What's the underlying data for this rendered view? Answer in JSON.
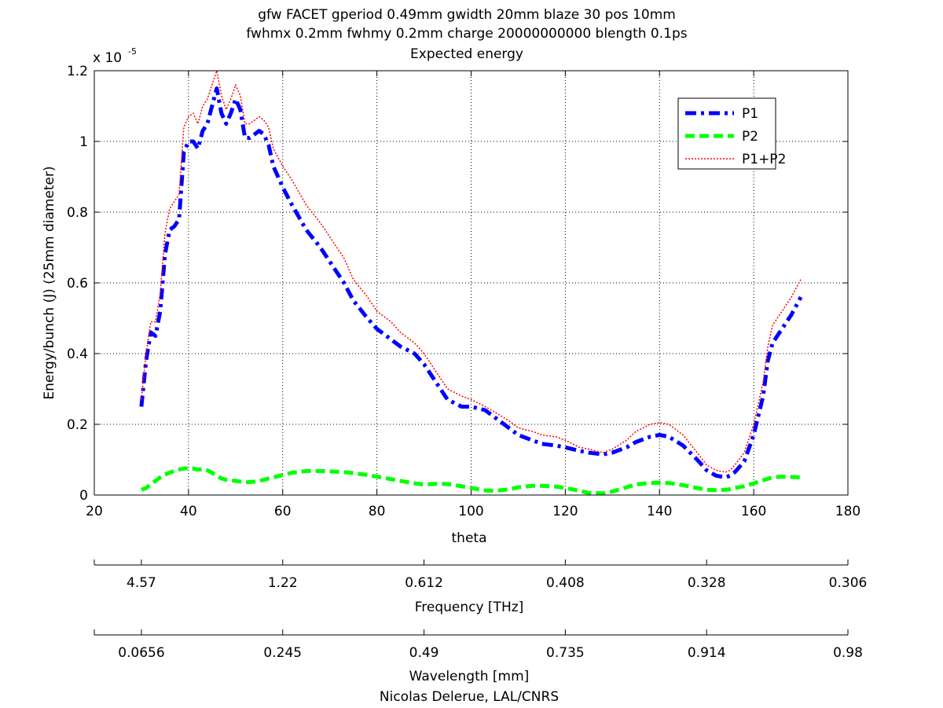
{
  "title_lines": [
    "gfw FACET gperiod 0.49mm gwidth 20mm blaze 30 pos 10mm",
    "fwhmx 0.2mm fwhmy 0.2mm charge 20000000000 blength 0.1ps",
    "Expected energy"
  ],
  "footer": "Nicolas Delerue, LAL/CNRS",
  "chart_data": {
    "type": "line",
    "xlabel": "theta",
    "ylabel": "Energy/bunch (J) (25mm diameter)",
    "y_multiplier": {
      "base": "x 10",
      "exponent": "-5"
    },
    "xlim": [
      20,
      180
    ],
    "ylim": [
      0,
      1.2
    ],
    "x_ticks": [
      "20",
      "40",
      "60",
      "80",
      "100",
      "120",
      "140",
      "160",
      "180"
    ],
    "y_ticks": [
      "0",
      "0.2",
      "0.4",
      "0.6",
      "0.8",
      "1",
      "1.2"
    ],
    "grid": true,
    "legend_position": "top-right",
    "secondary_axes": [
      {
        "label": "Frequency [THz]",
        "tick_theta": [
          30,
          60,
          90,
          120,
          150,
          180
        ],
        "tick_labels": [
          "4.57",
          "1.22",
          "0.612",
          "0.408",
          "0.328",
          "0.306"
        ]
      },
      {
        "label": "Wavelength [mm]",
        "tick_theta": [
          30,
          60,
          90,
          120,
          150,
          180
        ],
        "tick_labels": [
          "0.0656",
          "0.245",
          "0.49",
          "0.735",
          "0.914",
          "0.98"
        ]
      }
    ],
    "x": [
      30,
      31,
      32,
      33,
      34,
      35,
      36,
      37,
      38,
      39,
      40,
      41,
      42,
      43,
      44,
      45,
      46,
      47,
      48,
      49,
      50,
      51,
      52,
      53,
      54,
      55,
      56,
      57,
      58,
      60,
      62,
      65,
      68,
      70,
      73,
      75,
      78,
      80,
      83,
      85,
      88,
      90,
      93,
      95,
      98,
      100,
      103,
      105,
      108,
      110,
      113,
      115,
      118,
      120,
      123,
      125,
      128,
      130,
      133,
      135,
      138,
      140,
      142,
      145,
      148,
      150,
      152,
      154,
      155,
      156,
      158,
      160,
      162,
      163,
      164,
      166,
      168,
      170
    ],
    "series": [
      {
        "name": "P1",
        "color": "#0000ff",
        "style": "dash-dot",
        "values": [
          0.25,
          0.38,
          0.46,
          0.45,
          0.52,
          0.68,
          0.75,
          0.76,
          0.78,
          0.97,
          1.0,
          1.0,
          0.98,
          1.03,
          1.05,
          1.1,
          1.15,
          1.08,
          1.05,
          1.08,
          1.12,
          1.09,
          1.01,
          1.01,
          1.02,
          1.03,
          1.02,
          0.99,
          0.93,
          0.87,
          0.82,
          0.75,
          0.7,
          0.66,
          0.6,
          0.55,
          0.5,
          0.47,
          0.44,
          0.42,
          0.4,
          0.37,
          0.31,
          0.27,
          0.25,
          0.25,
          0.24,
          0.22,
          0.19,
          0.17,
          0.155,
          0.145,
          0.14,
          0.135,
          0.125,
          0.12,
          0.115,
          0.12,
          0.135,
          0.15,
          0.165,
          0.17,
          0.165,
          0.14,
          0.1,
          0.07,
          0.055,
          0.05,
          0.055,
          0.065,
          0.095,
          0.17,
          0.28,
          0.38,
          0.43,
          0.47,
          0.51,
          0.56
        ]
      },
      {
        "name": "P2",
        "color": "#00ff00",
        "style": "dashed",
        "values": [
          0.015,
          0.02,
          0.03,
          0.04,
          0.05,
          0.058,
          0.063,
          0.068,
          0.072,
          0.075,
          0.076,
          0.075,
          0.072,
          0.073,
          0.07,
          0.063,
          0.055,
          0.047,
          0.043,
          0.042,
          0.04,
          0.038,
          0.036,
          0.037,
          0.038,
          0.04,
          0.043,
          0.047,
          0.05,
          0.057,
          0.063,
          0.068,
          0.068,
          0.067,
          0.065,
          0.062,
          0.057,
          0.052,
          0.045,
          0.04,
          0.033,
          0.03,
          0.032,
          0.031,
          0.025,
          0.02,
          0.013,
          0.012,
          0.016,
          0.022,
          0.026,
          0.026,
          0.024,
          0.02,
          0.012,
          0.006,
          0.005,
          0.01,
          0.022,
          0.03,
          0.034,
          0.035,
          0.034,
          0.028,
          0.02,
          0.015,
          0.014,
          0.015,
          0.017,
          0.02,
          0.025,
          0.033,
          0.042,
          0.046,
          0.05,
          0.052,
          0.051,
          0.05
        ]
      },
      {
        "name": "P1+P2",
        "color": "#ff0000",
        "style": "dotted",
        "values": [
          0.27,
          0.4,
          0.49,
          0.49,
          0.57,
          0.74,
          0.81,
          0.83,
          0.85,
          1.04,
          1.07,
          1.08,
          1.05,
          1.1,
          1.12,
          1.16,
          1.2,
          1.13,
          1.09,
          1.12,
          1.16,
          1.13,
          1.05,
          1.05,
          1.06,
          1.07,
          1.06,
          1.04,
          0.98,
          0.93,
          0.89,
          0.82,
          0.77,
          0.73,
          0.67,
          0.61,
          0.56,
          0.52,
          0.49,
          0.46,
          0.43,
          0.4,
          0.34,
          0.3,
          0.28,
          0.27,
          0.25,
          0.235,
          0.21,
          0.19,
          0.18,
          0.17,
          0.165,
          0.155,
          0.135,
          0.13,
          0.12,
          0.13,
          0.155,
          0.18,
          0.2,
          0.205,
          0.2,
          0.17,
          0.12,
          0.085,
          0.07,
          0.065,
          0.07,
          0.085,
          0.12,
          0.2,
          0.32,
          0.42,
          0.48,
          0.52,
          0.56,
          0.61
        ]
      }
    ]
  }
}
